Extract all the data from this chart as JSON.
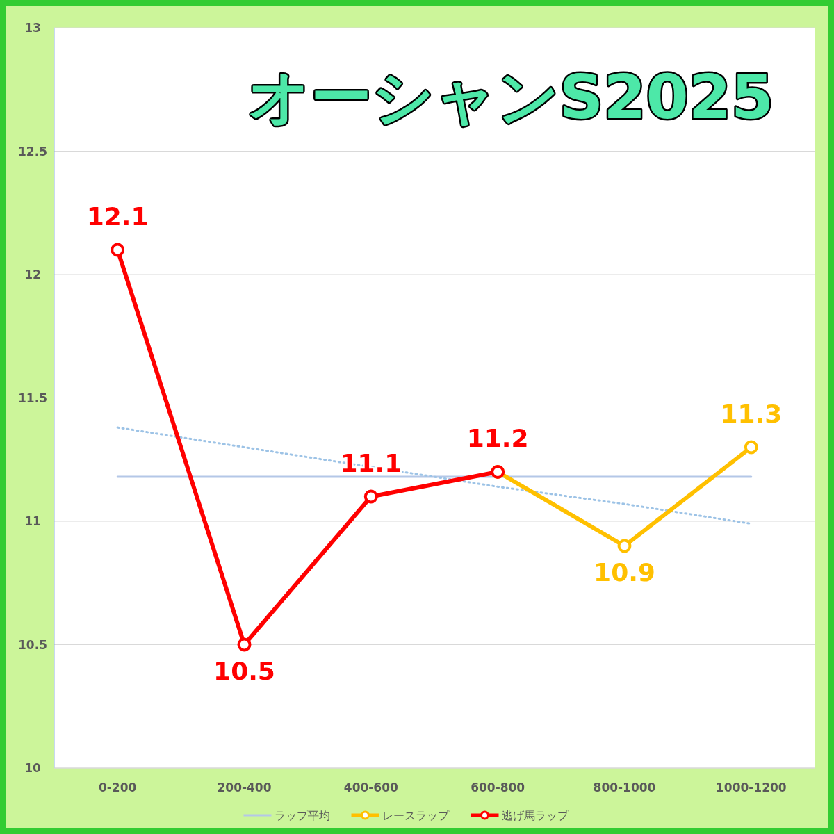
{
  "chart_data": {
    "type": "line",
    "title": "オーシャンS2025",
    "categories": [
      "0-200",
      "200-400",
      "400-600",
      "600-800",
      "800-1000",
      "1000-1200"
    ],
    "ylim": [
      10,
      13
    ],
    "yticks": [
      10,
      10.5,
      11,
      11.5,
      12,
      12.5,
      13
    ],
    "grid": "y",
    "legend": "bottom",
    "series": [
      {
        "name": "ラップ平均",
        "color": "#b4c7e7",
        "marker": "none",
        "line_style": "solid",
        "values": [
          11.18,
          11.18,
          11.18,
          11.18,
          11.18,
          11.18
        ]
      },
      {
        "color": "#9dc3e6",
        "marker": "none",
        "line_style": "dotted",
        "values": [
          11.38,
          11.3,
          11.22,
          11.14,
          11.07,
          10.99
        ]
      },
      {
        "name": "レースラップ",
        "color": "#ffc000",
        "marker": "circle",
        "line_style": "solid",
        "values": [
          null,
          null,
          null,
          11.2,
          10.9,
          11.3
        ],
        "value_labels": [
          null,
          null,
          null,
          null,
          "10.9",
          "11.3"
        ]
      },
      {
        "name": "逃げ馬ラップ",
        "color": "#ff0000",
        "marker": "circle",
        "line_style": "solid",
        "values": [
          12.1,
          10.5,
          11.1,
          11.2,
          null,
          null
        ],
        "value_labels": [
          "12.1",
          "10.5",
          "11.1",
          "11.2",
          null,
          null
        ]
      }
    ]
  }
}
